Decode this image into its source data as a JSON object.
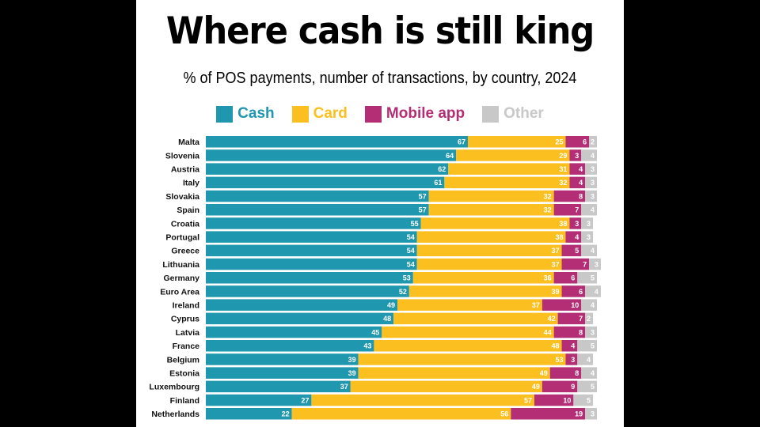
{
  "title": "Where cash is still king",
  "subtitle": "% of POS payments, number of transactions, by country, 2024",
  "colors": {
    "cash": "#1f97ae",
    "card": "#fbbf1f",
    "mobile": "#b32e75",
    "other": "#c8c8c8"
  },
  "legend": [
    {
      "label": "Cash",
      "color": "#1f97ae"
    },
    {
      "label": "Card",
      "color": "#fbbf1f"
    },
    {
      "label": "Mobile app",
      "color": "#b32e75"
    },
    {
      "label": "Other",
      "color": "#c8c8c8"
    }
  ],
  "chart_data": {
    "type": "bar",
    "stacked": true,
    "orientation": "horizontal",
    "title": "Where cash is still king",
    "subtitle": "% of POS payments, number of transactions, by country, 2024",
    "xlim": [
      0,
      100
    ],
    "categories": [
      "Malta",
      "Slovenia",
      "Austria",
      "Italy",
      "Slovakia",
      "Spain",
      "Croatia",
      "Portugal",
      "Greece",
      "Lithuania",
      "Germany",
      "Euro Area",
      "Ireland",
      "Cyprus",
      "Latvia",
      "France",
      "Belgium",
      "Estonia",
      "Luxembourg",
      "Finland",
      "Netherlands"
    ],
    "series": [
      {
        "name": "Cash",
        "color": "#1f97ae",
        "values": [
          67,
          64,
          62,
          61,
          57,
          57,
          55,
          54,
          54,
          54,
          53,
          52,
          49,
          48,
          45,
          43,
          39,
          39,
          37,
          27,
          22
        ]
      },
      {
        "name": "Card",
        "color": "#fbbf1f",
        "values": [
          25,
          29,
          31,
          32,
          32,
          32,
          38,
          38,
          37,
          37,
          36,
          39,
          37,
          42,
          44,
          48,
          53,
          49,
          49,
          57,
          56
        ]
      },
      {
        "name": "Mobile app",
        "color": "#b32e75",
        "values": [
          6,
          3,
          4,
          4,
          8,
          7,
          3,
          4,
          5,
          7,
          6,
          6,
          10,
          7,
          8,
          4,
          3,
          8,
          9,
          10,
          19
        ]
      },
      {
        "name": "Other",
        "color": "#c8c8c8",
        "values": [
          2,
          4,
          3,
          3,
          3,
          4,
          3,
          3,
          4,
          3,
          5,
          4,
          4,
          2,
          3,
          5,
          4,
          4,
          5,
          5,
          3
        ]
      }
    ],
    "legend_position": "top",
    "grid": false
  }
}
